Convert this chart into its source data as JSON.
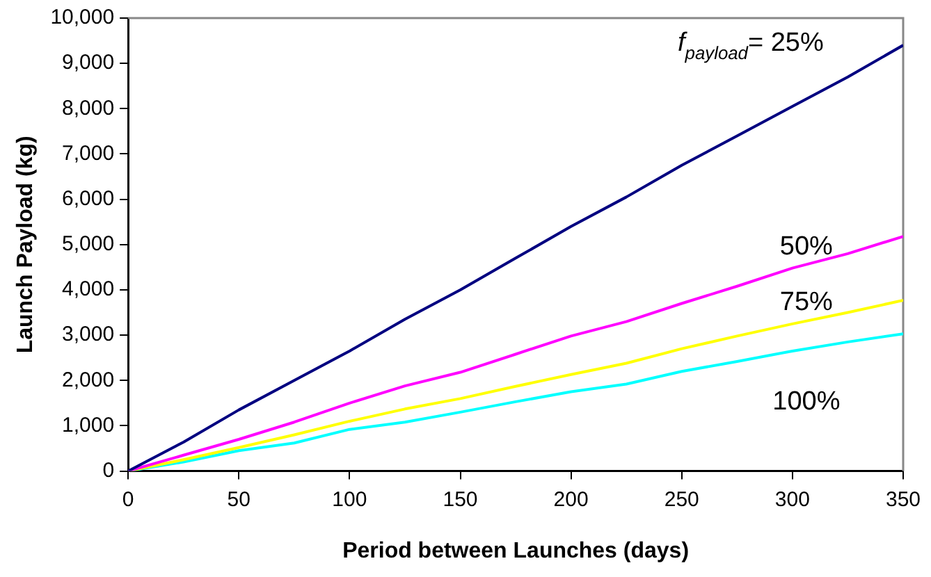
{
  "chart_data": {
    "type": "line",
    "xlabel": "Period between Launches (days)",
    "ylabel": "Launch Payload (kg)",
    "x": [
      0,
      25,
      50,
      75,
      100,
      125,
      150,
      175,
      200,
      225,
      250,
      275,
      300,
      325,
      350
    ],
    "xlim": [
      0,
      350
    ],
    "xticks": [
      0,
      50,
      100,
      150,
      200,
      250,
      300,
      350
    ],
    "ylim": [
      0,
      10000
    ],
    "yticks": [
      {
        "value": 0,
        "label": "0"
      },
      {
        "value": 1000,
        "label": "1,000"
      },
      {
        "value": 2000,
        "label": "2,000"
      },
      {
        "value": 3000,
        "label": "3,000"
      },
      {
        "value": 4000,
        "label": "4,000"
      },
      {
        "value": 5000,
        "label": "5,000"
      },
      {
        "value": 6000,
        "label": "6,000"
      },
      {
        "value": 7000,
        "label": "7,000"
      },
      {
        "value": 8000,
        "label": "8,000"
      },
      {
        "value": 9000,
        "label": "9,000"
      },
      {
        "value": 10000,
        "label": "10,000"
      }
    ],
    "grid": false,
    "legend": false,
    "marker": "none",
    "line_style": "solid",
    "series": [
      {
        "name": "f$_{payload}$= 25%",
        "color": "#000080",
        "values": [
          0,
          640,
          1350,
          2000,
          2650,
          3350,
          4000,
          4700,
          5400,
          6050,
          6750,
          7400,
          8050,
          8700,
          9400
        ]
      },
      {
        "name": "50%",
        "color": "#ff00ff",
        "values": [
          0,
          350,
          700,
          1080,
          1500,
          1880,
          2180,
          2580,
          2980,
          3300,
          3700,
          4080,
          4480,
          4800,
          5180
        ]
      },
      {
        "name": "75%",
        "color": "#ffff00",
        "values": [
          0,
          250,
          520,
          800,
          1100,
          1370,
          1600,
          1870,
          2130,
          2380,
          2700,
          2980,
          3250,
          3500,
          3770
        ]
      },
      {
        "name": "100%",
        "color": "#00ffff",
        "values": [
          0,
          200,
          450,
          620,
          920,
          1080,
          1300,
          1530,
          1750,
          1920,
          2200,
          2420,
          2650,
          2850,
          3030
        ]
      }
    ]
  }
}
